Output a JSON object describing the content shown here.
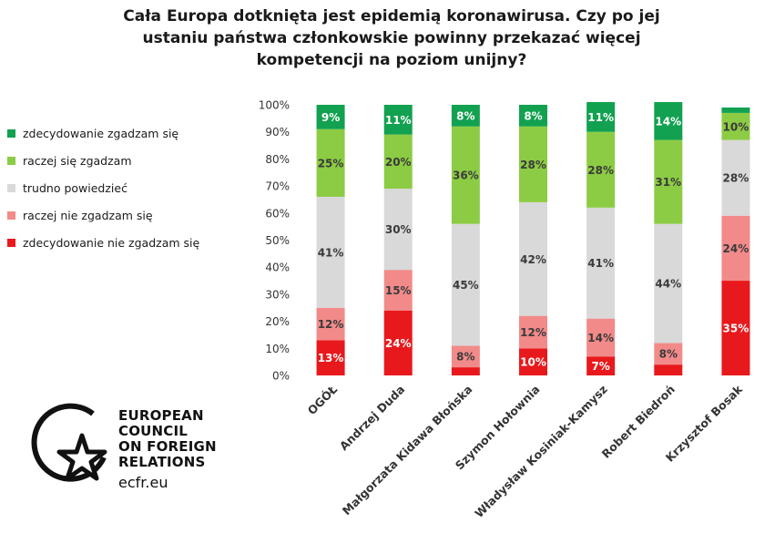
{
  "title_lines": [
    "Cała Europa dotknięta jest epidemią koronawirusa. Czy po jej",
    "ustaniu państwa członkowskie powinny przekazać więcej",
    "kompetencji na poziom unijny?"
  ],
  "logo": {
    "lines": [
      "EUROPEAN",
      "COUNCIL",
      "ON FOREIGN",
      "RELATIONS"
    ],
    "url": "ecfr.eu"
  },
  "colors": {
    "zdecydowanie_zgadzam": "#12a150",
    "raczej_zgadzam": "#8ccc44",
    "trudno": "#d9d9d9",
    "raczej_nie": "#f28a8a",
    "zdecydowanie_nie": "#e8191c"
  },
  "chart_data": {
    "type": "bar",
    "stacked": true,
    "percent": true,
    "title": "Cała Europa dotknięta jest epidemią koronawirusa. Czy po jej ustaniu państwa członkowskie powinny przekazać więcej kompetencji na poziom unijny?",
    "categories": [
      "OGÓŁ",
      "Andrzej Duda",
      "Małgorzata Kidawa Błońska",
      "Szymon Hołownia",
      "Władysław Kosiniak-Kamysz",
      "Robert Biedroń",
      "Krzysztof Bosak"
    ],
    "ylim": [
      0,
      100
    ],
    "yticks": [
      "0%",
      "10%",
      "20%",
      "30%",
      "40%",
      "50%",
      "60%",
      "70%",
      "80%",
      "90%",
      "100%"
    ],
    "legend_position": "left",
    "series": [
      {
        "name": "zdecydowanie nie zgadzam się",
        "color": "#e8191c",
        "values": [
          13,
          24,
          3,
          10,
          7,
          4,
          35
        ],
        "labels": [
          "13%",
          "24%",
          "",
          "10%",
          "7%",
          "",
          "35%"
        ],
        "label_color": "#ffffff"
      },
      {
        "name": "raczej nie zgadzam się",
        "color": "#f28a8a",
        "values": [
          12,
          15,
          8,
          12,
          14,
          8,
          24
        ],
        "labels": [
          "12%",
          "15%",
          "8%",
          "12%",
          "14%",
          "8%",
          "24%"
        ],
        "label_color": "#3a3a3a"
      },
      {
        "name": "trudno powiedzieć",
        "color": "#d9d9d9",
        "values": [
          41,
          30,
          45,
          42,
          41,
          44,
          28
        ],
        "labels": [
          "41%",
          "30%",
          "45%",
          "42%",
          "41%",
          "44%",
          "28%"
        ],
        "label_color": "#3a3a3a"
      },
      {
        "name": "raczej się zgadzam",
        "color": "#8ccc44",
        "values": [
          25,
          20,
          36,
          28,
          28,
          31,
          10
        ],
        "labels": [
          "25%",
          "20%",
          "36%",
          "28%",
          "28%",
          "31%",
          "10%"
        ],
        "label_color": "#3a3a3a"
      },
      {
        "name": "zdecydowanie zgadzam się",
        "color": "#12a150",
        "values": [
          9,
          11,
          8,
          8,
          11,
          14,
          2
        ],
        "labels": [
          "9%",
          "11%",
          "8%",
          "8%",
          "11%",
          "14%",
          ""
        ],
        "label_color": "#ffffff"
      }
    ]
  }
}
